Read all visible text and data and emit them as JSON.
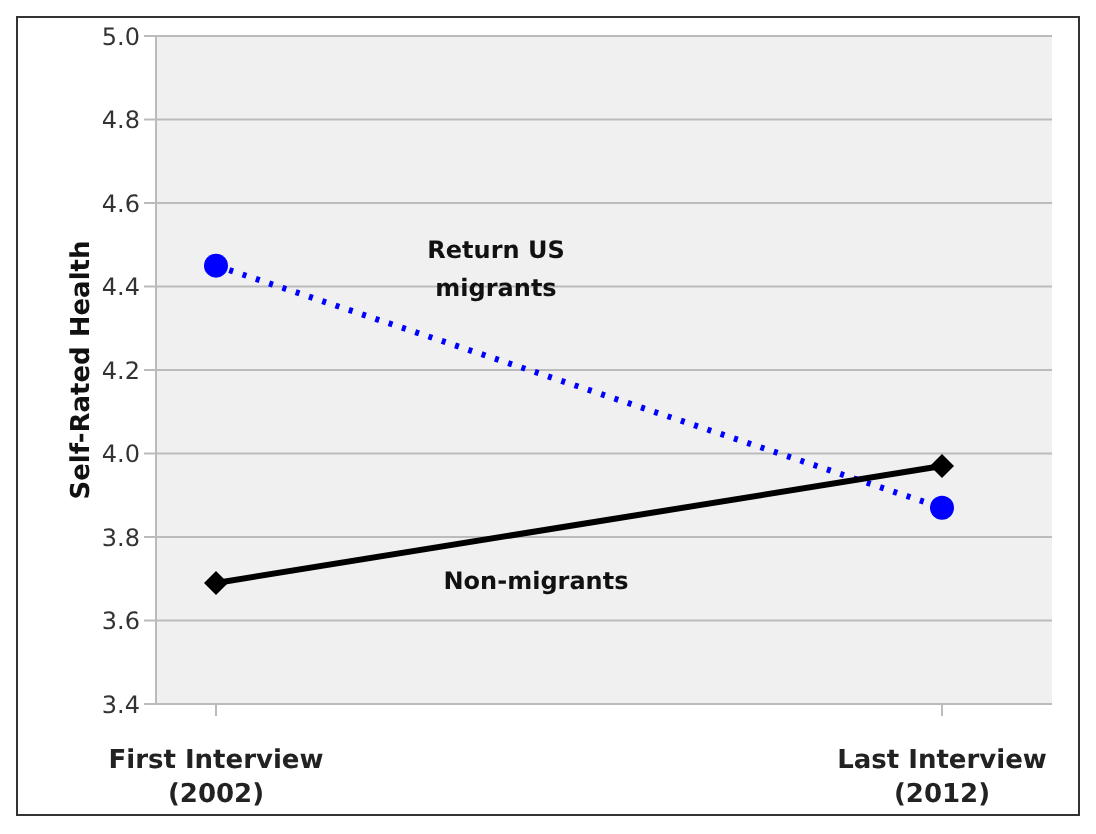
{
  "chart_data": {
    "type": "line",
    "ylabel": "Self-Rated Health",
    "categories": [
      "First Interview\n(2002)",
      "Last Interview\n(2012)"
    ],
    "series": [
      {
        "name": "Return US\nmigrants",
        "color": "#0000ff",
        "values": [
          4.45,
          3.87
        ],
        "marker": "circle",
        "line_style": "dotted"
      },
      {
        "name": "Non-migrants",
        "color": "#000000",
        "values": [
          3.69,
          3.97
        ],
        "marker": "diamond",
        "line_style": "solid"
      }
    ],
    "ylim": [
      3.4,
      5.0
    ],
    "yticks": [
      3.4,
      3.6,
      3.8,
      {
        "value": 4,
        "label": "4.0"
      },
      4.2,
      4.4,
      4.6,
      4.8,
      {
        "value": 5,
        "label": "5.0"
      }
    ],
    "grid": "y",
    "legend": false
  }
}
